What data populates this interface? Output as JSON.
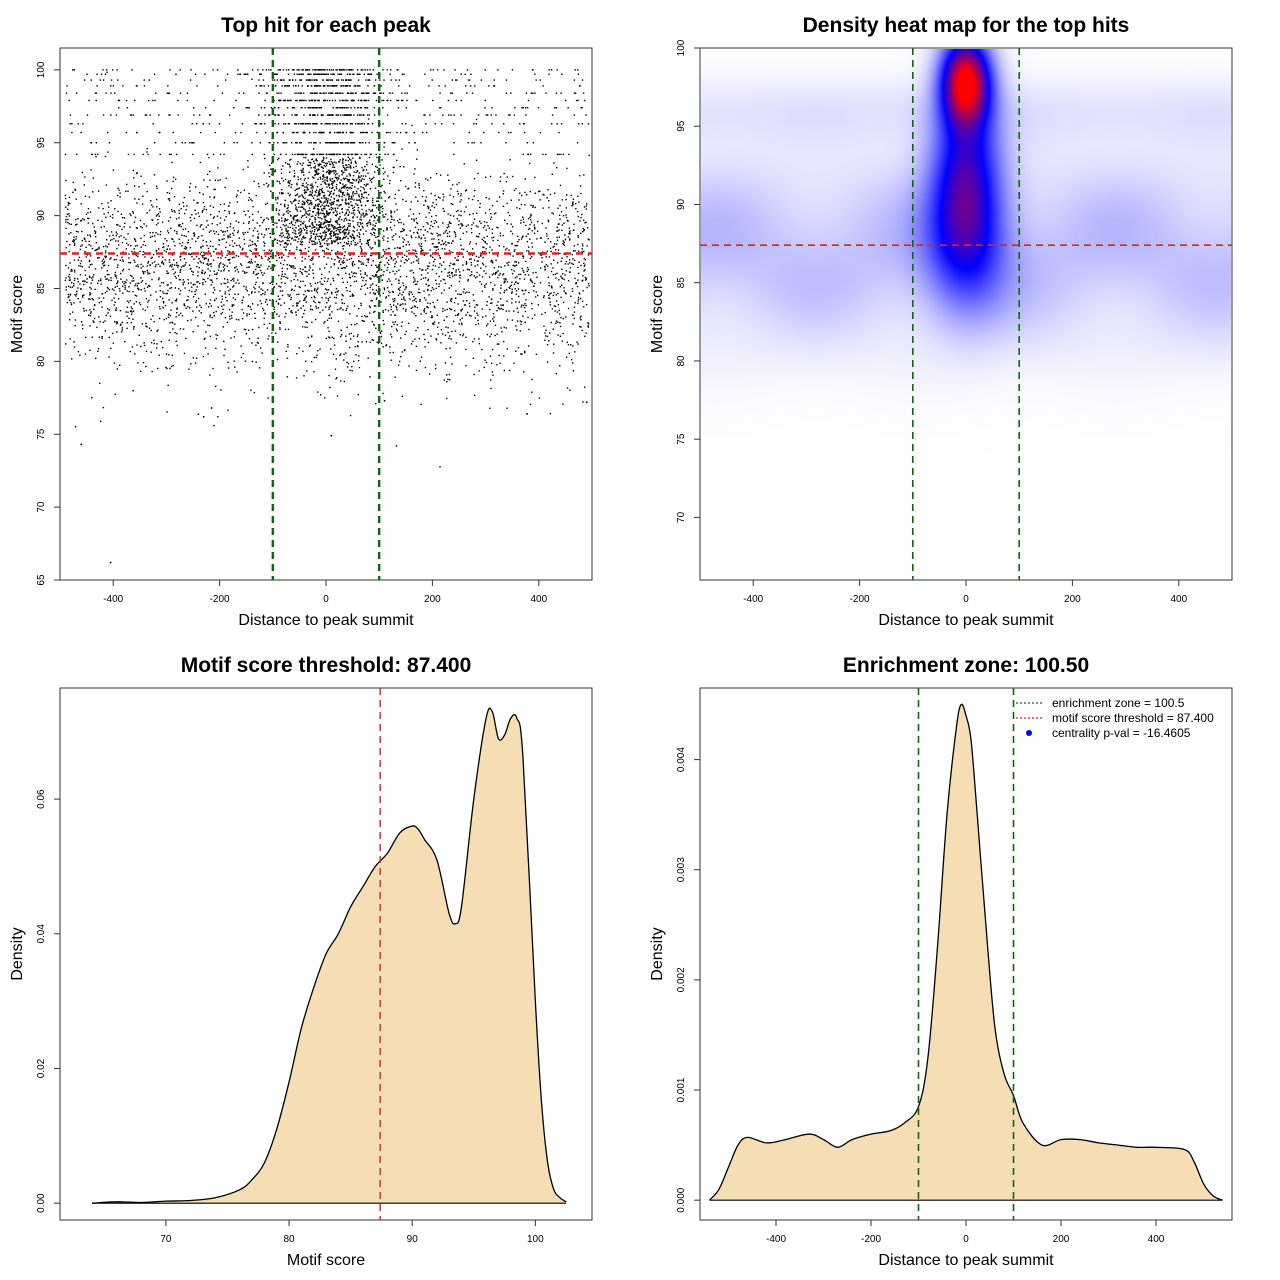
{
  "chart_data": [
    {
      "type": "scatter",
      "title": "Top hit for each peak",
      "xlabel": "Distance to peak summit",
      "ylabel": "Motif score",
      "xlim": [
        -500,
        500
      ],
      "ylim": [
        65,
        101.5
      ],
      "xticks": [
        "-400",
        "-200",
        "0",
        "200",
        "400"
      ],
      "yticks": [
        "65",
        "70",
        "75",
        "80",
        "85",
        "90",
        "95",
        "100"
      ],
      "n_points_approx": 6000,
      "point_distribution": "uniform background over [-500,500] for scores ~78-92; dense central band around 0 (within ±100) for scores 88-100; sparse high-score rows at discrete levels near 95-100",
      "point_color": "#000000",
      "hlines": [
        {
          "y": 87.4,
          "color": "#dd2222",
          "style": "dashed"
        }
      ],
      "vlines": [
        {
          "x": -100,
          "color": "#116611",
          "style": "dashed"
        },
        {
          "x": 100,
          "color": "#116611",
          "style": "dashed"
        }
      ]
    },
    {
      "type": "heatmap",
      "title": "Density heat map for the top hits",
      "xlabel": "Distance to peak summit",
      "ylabel": "Motif score",
      "xlim": [
        -500,
        500
      ],
      "ylim": [
        66,
        100
      ],
      "xticks": [
        "-400",
        "-200",
        "0",
        "200",
        "400"
      ],
      "yticks": [
        "70",
        "75",
        "80",
        "85",
        "90",
        "95",
        "100"
      ],
      "colormap": [
        "#ffffff",
        "#0000ff",
        "#ff0000"
      ],
      "hotspot": {
        "x": 0,
        "y": 98,
        "value": "max (red)"
      },
      "hlines": [
        {
          "y": 87.4,
          "color": "#dd2222",
          "style": "dashed"
        }
      ],
      "vlines": [
        {
          "x": -100,
          "color": "#116611",
          "style": "dashed"
        },
        {
          "x": 100,
          "color": "#116611",
          "style": "dashed"
        }
      ]
    },
    {
      "type": "area",
      "title": "Motif score threshold: 87.400",
      "xlabel": "Motif score",
      "ylabel": "Density",
      "xlim": [
        61.4,
        104.6
      ],
      "ylim": [
        -0.0025,
        0.0765
      ],
      "xticks": [
        "70",
        "80",
        "90",
        "100"
      ],
      "yticks": [
        "0.00",
        "0.02",
        "0.04",
        "0.06"
      ],
      "fill": "#f5deb3",
      "x": [
        64,
        66,
        68,
        70,
        72,
        74,
        76,
        77,
        78,
        79,
        80,
        81,
        82,
        83,
        84,
        85,
        86,
        87,
        88,
        89,
        90,
        90.5,
        91,
        92,
        93,
        93.5,
        94,
        95,
        96,
        96.5,
        97,
        97.5,
        98,
        98.5,
        99,
        100,
        100.5,
        101,
        101.5,
        102,
        102.5
      ],
      "values": [
        0.0,
        0.0002,
        0.0001,
        0.0003,
        0.0004,
        0.0008,
        0.002,
        0.0035,
        0.006,
        0.011,
        0.018,
        0.026,
        0.032,
        0.037,
        0.04,
        0.044,
        0.047,
        0.05,
        0.052,
        0.055,
        0.056,
        0.0555,
        0.054,
        0.051,
        0.043,
        0.0415,
        0.044,
        0.06,
        0.072,
        0.073,
        0.069,
        0.0695,
        0.072,
        0.072,
        0.066,
        0.03,
        0.015,
        0.006,
        0.002,
        0.0008,
        0.0002
      ],
      "vlines": [
        {
          "x": 87.4,
          "color": "#dd2222",
          "style": "dashed"
        }
      ]
    },
    {
      "type": "area",
      "title": "Enrichment zone: 100.50",
      "xlabel": "Distance to peak summit",
      "ylabel": "Density",
      "xlim": [
        -560,
        560
      ],
      "ylim": [
        -0.00018,
        0.00465
      ],
      "xticks": [
        "-400",
        "-200",
        "0",
        "200",
        "400"
      ],
      "yticks": [
        "0.000",
        "0.001",
        "0.002",
        "0.003",
        "0.004"
      ],
      "fill": "#f5deb3",
      "x": [
        -540,
        -520,
        -500,
        -480,
        -460,
        -420,
        -380,
        -330,
        -300,
        -270,
        -240,
        -200,
        -160,
        -130,
        -100,
        -80,
        -60,
        -40,
        -20,
        -10,
        0,
        10,
        20,
        40,
        60,
        80,
        100,
        120,
        160,
        200,
        240,
        280,
        320,
        360,
        400,
        460,
        480,
        500,
        520,
        540
      ],
      "values": [
        0.0,
        0.0001,
        0.0003,
        0.0005,
        0.00057,
        0.00052,
        0.00055,
        0.0006,
        0.00055,
        0.00048,
        0.00055,
        0.0006,
        0.00063,
        0.0007,
        0.00085,
        0.0013,
        0.0023,
        0.0035,
        0.0043,
        0.0045,
        0.0044,
        0.0042,
        0.0037,
        0.0026,
        0.0016,
        0.00115,
        0.00095,
        0.0007,
        0.0005,
        0.00055,
        0.00055,
        0.00052,
        0.0005,
        0.00048,
        0.00048,
        0.00046,
        0.00035,
        0.00015,
        4e-05,
        0.0
      ],
      "vlines": [
        {
          "x": -100,
          "color": "#116611",
          "style": "dashed"
        },
        {
          "x": 100,
          "color": "#116611",
          "style": "dashed"
        }
      ],
      "legend_position": "top-right",
      "legend": [
        {
          "label": "enrichment zone = 100.5",
          "color": "#116611",
          "kind": "line"
        },
        {
          "label": "motif score threshold = 87.400",
          "color": "#dd2222",
          "kind": "line"
        },
        {
          "label": "centrality p-val = -16.4605",
          "color": "#0000ff",
          "kind": "point"
        }
      ]
    }
  ]
}
